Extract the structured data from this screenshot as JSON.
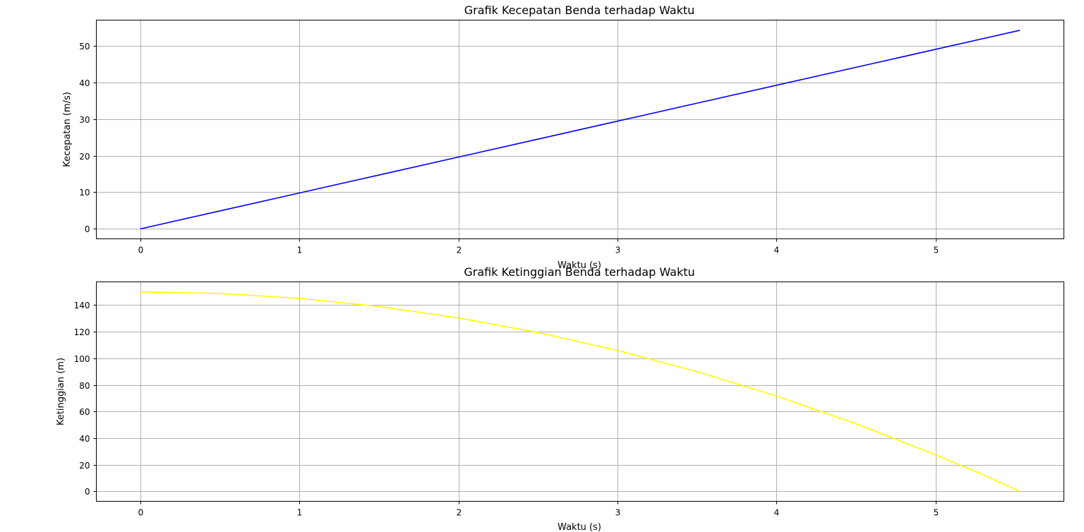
{
  "chart_data": [
    {
      "type": "line",
      "title": "Grafik Kecepatan Benda terhadap Waktu",
      "xlabel": "Waktu (s)",
      "ylabel": "Kecepatan (m/s)",
      "xlim": [
        -0.277,
        5.807
      ],
      "ylim": [
        -2.72,
        56.98
      ],
      "xticks": [
        0,
        1,
        2,
        3,
        4,
        5
      ],
      "yticks": [
        0,
        10,
        20,
        30,
        40,
        50
      ],
      "grid": true,
      "series": [
        {
          "color": "#0000ff",
          "x": [
            0,
            0.5,
            1,
            1.5,
            2,
            2.5,
            3,
            3.5,
            4,
            4.5,
            5,
            5.53
          ],
          "y": [
            0,
            4.9,
            9.8,
            14.7,
            19.6,
            24.5,
            29.4,
            34.3,
            39.2,
            44.1,
            49.0,
            54.2
          ]
        }
      ]
    },
    {
      "type": "line",
      "title": "Grafik Ketinggian Benda terhadap Waktu",
      "xlabel": "Waktu (s)",
      "ylabel": "Ketinggian (m)",
      "xlim": [
        -0.277,
        5.807
      ],
      "ylim": [
        -7.5,
        157.5
      ],
      "xticks": [
        0,
        1,
        2,
        3,
        4,
        5
      ],
      "yticks": [
        0,
        20,
        40,
        60,
        80,
        100,
        120,
        140
      ],
      "grid": true,
      "series": [
        {
          "color": "#ffff00",
          "x": [
            0,
            0.5,
            1,
            1.5,
            2,
            2.5,
            3,
            3.5,
            4,
            4.5,
            5,
            5.25,
            5.53
          ],
          "y": [
            150,
            148.8,
            145.1,
            139.0,
            130.4,
            119.4,
            105.9,
            90.0,
            71.6,
            50.8,
            27.5,
            15.0,
            0
          ]
        }
      ]
    }
  ]
}
